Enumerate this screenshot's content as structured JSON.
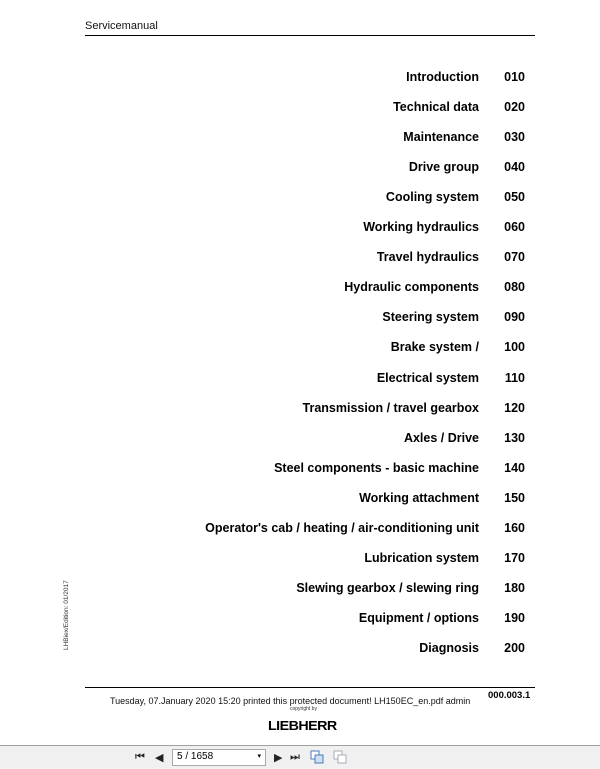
{
  "header": {
    "title": "Servicemanual"
  },
  "toc": [
    {
      "title": "Introduction",
      "number": "010"
    },
    {
      "title": "Technical data",
      "number": "020"
    },
    {
      "title": "Maintenance",
      "number": "030"
    },
    {
      "title": "Drive group",
      "number": "040"
    },
    {
      "title": "Cooling system",
      "number": "050"
    },
    {
      "title": "Working hydraulics",
      "number": "060"
    },
    {
      "title": "Travel hydraulics",
      "number": "070"
    },
    {
      "title": "Hydraulic components",
      "number": "080"
    },
    {
      "title": "Steering system",
      "number": "090"
    },
    {
      "title": "Brake system /",
      "number": "100"
    },
    {
      "title": "Electrical system",
      "number": "110"
    },
    {
      "title": "Transmission / travel gearbox",
      "number": "120"
    },
    {
      "title": "Axles / Drive",
      "number": "130"
    },
    {
      "title": "Steel components - basic machine",
      "number": "140"
    },
    {
      "title": "Working attachment",
      "number": "150"
    },
    {
      "title": "Operator's cab / heating / air-conditioning unit",
      "number": "160"
    },
    {
      "title": "Lubrication system",
      "number": "170"
    },
    {
      "title": "Slewing gearbox / slewing ring",
      "number": "180"
    },
    {
      "title": "Equipment / options",
      "number": "190"
    },
    {
      "title": "Diagnosis",
      "number": "200"
    }
  ],
  "side_text": "LHBiex/Edition: 01/2017",
  "footer": {
    "printed": "Tuesday, 07.January 2020 15:20 printed this protected document! LH150EC_en.pdf admin",
    "copyright": "copyright by",
    "page_code": "000.003.1",
    "logo": "LIEBHERR"
  },
  "toolbar": {
    "first": "⏮",
    "prev": "◀",
    "page": "5 / 1658",
    "next": "▶",
    "last": "⏭",
    "dropdown": "▾"
  }
}
